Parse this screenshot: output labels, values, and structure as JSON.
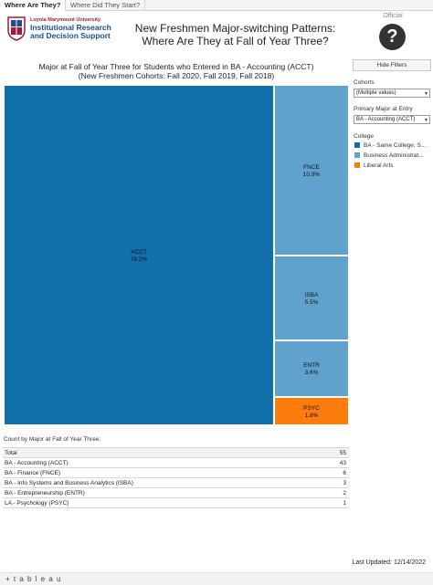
{
  "tabs": [
    "Where Are They?",
    "Where Did They Start?"
  ],
  "logo": {
    "university": "Loyola Marymount University",
    "office_line1": "Institutional Research",
    "office_line2": "and Decision Support"
  },
  "header": {
    "title_line1": "New Freshmen Major-switching Patterns:",
    "title_line2": "Where Are They at Fall of Year Three?",
    "official_label": "Official"
  },
  "chart": {
    "title_line1": "Major at Fall of Year Three for Students who Entered in BA - Accounting (ACCT)",
    "title_line2": "(New Freshmen Cohorts: Fall 2020, Fall 2019, Fall 2018)"
  },
  "chart_data": {
    "type": "treemap",
    "items": [
      {
        "label": "ACCT",
        "percent": "78.2%",
        "value": 43,
        "college": "BA - Same College, Same Major"
      },
      {
        "label": "FNCE",
        "percent": "10.9%",
        "value": 6,
        "college": "Business Administration"
      },
      {
        "label": "ISBA",
        "percent": "5.5%",
        "value": 3,
        "college": "Business Administration"
      },
      {
        "label": "ENTR",
        "percent": "3.6%",
        "value": 2,
        "college": "Business Administration"
      },
      {
        "label": "PSYC",
        "percent": "1.8%",
        "value": 1,
        "college": "Liberal Arts"
      }
    ],
    "colors": {
      "BA - Same College, Same Major": "#1170aa",
      "Business Administration": "#5fa2ce",
      "Liberal Arts": "#fc7d0b"
    }
  },
  "filters": {
    "hide_button": "Hide Filters",
    "cohorts_label": "Cohorts",
    "cohorts_value": "(Multiple values)",
    "primary_label": "Primary Major at Entry",
    "primary_value": "BA - Accounting (ACCT)",
    "college_label": "College",
    "legend": [
      {
        "label": "BA - Same College, S...",
        "color": "#1170aa"
      },
      {
        "label": "Business Administrat...",
        "color": "#5fa2ce"
      },
      {
        "label": "Liberal Arts",
        "color": "#fc7d0b"
      }
    ]
  },
  "count_table": {
    "title": "Count by Major at Fall of Year Three:",
    "rows": [
      {
        "label": "Total",
        "value": "55"
      },
      {
        "label": "BA - Accounting (ACCT)",
        "value": "43"
      },
      {
        "label": "BA - Finance (FNCE)",
        "value": "6"
      },
      {
        "label": "BA - Info Systems and Business Analytics (ISBA)",
        "value": "3"
      },
      {
        "label": "BA - Entrepreneurship (ENTR)",
        "value": "2"
      },
      {
        "label": "LA - Psychology (PSYC)",
        "value": "1"
      }
    ]
  },
  "last_updated": "Last Updated: 12/14/2022",
  "footer": {
    "brand": "+ t a b l e a u"
  }
}
